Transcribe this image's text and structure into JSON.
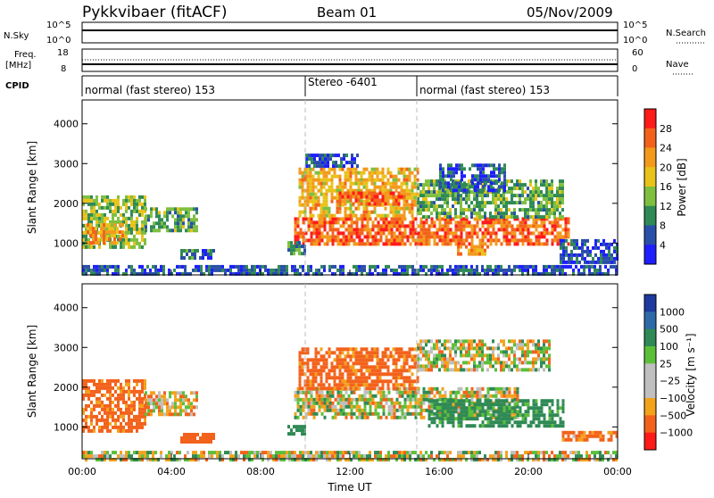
{
  "header": {
    "station": "Pykkvibaer (fitACF)",
    "beam": "Beam 01",
    "date": "05/Nov/2009"
  },
  "top_strips": {
    "nsky_label": "N.Sky",
    "nsearch_label": "N.Search",
    "nsky_ticks": [
      "10^5",
      "10^0"
    ],
    "nsearch_ticks": [
      "10^5",
      "10^0"
    ],
    "freq_label_1": "Freq.",
    "freq_label_2": "[MHz]",
    "freq_ticks": [
      "18",
      "8"
    ],
    "nave_label": "Nave",
    "nave_ticks": [
      "60",
      "0"
    ],
    "cpid_label": "CPID",
    "cpid_segments": [
      {
        "label": "normal (fast stereo) 153",
        "start_h": 0,
        "end_h": 10
      },
      {
        "label": "Stereo -6401",
        "start_h": 10,
        "end_h": 15
      },
      {
        "label": "normal (fast stereo) 153",
        "start_h": 15,
        "end_h": 24
      }
    ]
  },
  "power_colorbar": {
    "label": "Power [dB]",
    "ticks": [
      "28",
      "24",
      "20",
      "16",
      "12",
      "8",
      "4"
    ],
    "colors": [
      "#1e1eff",
      "#2a4fa8",
      "#2f8a55",
      "#7fbf3f",
      "#e9c21a",
      "#f39a1c",
      "#f3621c",
      "#ff1a1a"
    ]
  },
  "velocity_colorbar": {
    "label": "Velocity [m s⁻¹]",
    "ticks": [
      "1000",
      "500",
      "100",
      "25",
      "−25",
      "−100",
      "−500",
      "−1000"
    ],
    "colors": [
      "#1e3a9e",
      "#2f6aa8",
      "#2f8a55",
      "#5cbf3a",
      "#bfbfbf",
      "#bfbfbf",
      "#f3a21c",
      "#f3621c",
      "#ff1a1a"
    ]
  },
  "chart_data": [
    {
      "type": "heatmap",
      "name": "power",
      "ylabel": "Slant Range [km]",
      "xlabel": "",
      "xlim": [
        0,
        24
      ],
      "ylim": [
        200,
        4600
      ],
      "y_ticks": [
        "1000",
        "2000",
        "3000",
        "4000"
      ],
      "echo_regions": [
        {
          "t0": 0.0,
          "t1": 2.8,
          "r0": 900,
          "r1": 2200,
          "level": 14
        },
        {
          "t0": 0.2,
          "t1": 1.8,
          "r0": 1000,
          "r1": 1500,
          "level": 22
        },
        {
          "t0": 2.8,
          "t1": 5.1,
          "r0": 1300,
          "r1": 1900,
          "level": 12
        },
        {
          "t0": 4.4,
          "t1": 5.9,
          "r0": 600,
          "r1": 850,
          "level": 8
        },
        {
          "t0": 0.0,
          "t1": 24.0,
          "r0": 200,
          "r1": 450,
          "level": 6
        },
        {
          "t0": 9.5,
          "t1": 21.8,
          "r0": 950,
          "r1": 1650,
          "level": 26
        },
        {
          "t0": 9.7,
          "t1": 15.0,
          "r0": 1700,
          "r1": 2900,
          "level": 20
        },
        {
          "t0": 11.5,
          "t1": 14.5,
          "r0": 2000,
          "r1": 2300,
          "level": 26
        },
        {
          "t0": 15.0,
          "t1": 21.5,
          "r0": 1650,
          "r1": 2600,
          "level": 12
        },
        {
          "t0": 16.0,
          "t1": 19.0,
          "r0": 2300,
          "r1": 3000,
          "level": 6
        },
        {
          "t0": 10.0,
          "t1": 12.3,
          "r0": 2900,
          "r1": 3250,
          "level": 6
        },
        {
          "t0": 9.2,
          "t1": 10.0,
          "r0": 700,
          "r1": 1050,
          "level": 10
        },
        {
          "t0": 16.8,
          "t1": 18.2,
          "r0": 750,
          "r1": 950,
          "level": 22
        },
        {
          "t0": 21.4,
          "t1": 24.0,
          "r0": 500,
          "r1": 1100,
          "level": 6
        }
      ]
    },
    {
      "type": "heatmap",
      "name": "velocity",
      "ylabel": "Slant Range [km]",
      "xlabel": "Time UT",
      "xlim": [
        0,
        24
      ],
      "ylim": [
        200,
        4600
      ],
      "y_ticks": [
        "1000",
        "2000",
        "3000",
        "4000"
      ],
      "x_ticks": [
        "00:00",
        "04:00",
        "08:00",
        "12:00",
        "16:00",
        "20:00",
        "00:00"
      ],
      "echo_regions": [
        {
          "t0": 0.0,
          "t1": 2.8,
          "r0": 900,
          "r1": 2200,
          "v": -200
        },
        {
          "t0": 2.8,
          "t1": 5.1,
          "r0": 1300,
          "r1": 1900,
          "v": -60
        },
        {
          "t0": 4.4,
          "t1": 5.9,
          "r0": 650,
          "r1": 850,
          "v": -300
        },
        {
          "t0": 0.0,
          "t1": 24.0,
          "r0": 200,
          "r1": 400,
          "v": 0
        },
        {
          "t0": 9.5,
          "t1": 19.5,
          "r0": 1200,
          "r1": 2000,
          "v": 0
        },
        {
          "t0": 9.7,
          "t1": 15.0,
          "r0": 2000,
          "r1": 3000,
          "v": -200
        },
        {
          "t0": 15.0,
          "t1": 21.0,
          "r0": 2400,
          "r1": 3200,
          "v": 0
        },
        {
          "t0": 15.5,
          "t1": 21.6,
          "r0": 1000,
          "r1": 1700,
          "v": 200
        },
        {
          "t0": 9.2,
          "t1": 10.0,
          "r0": 800,
          "r1": 1050,
          "v": 300
        },
        {
          "t0": 21.5,
          "t1": 24.0,
          "r0": 650,
          "r1": 900,
          "v": -150
        }
      ]
    }
  ]
}
